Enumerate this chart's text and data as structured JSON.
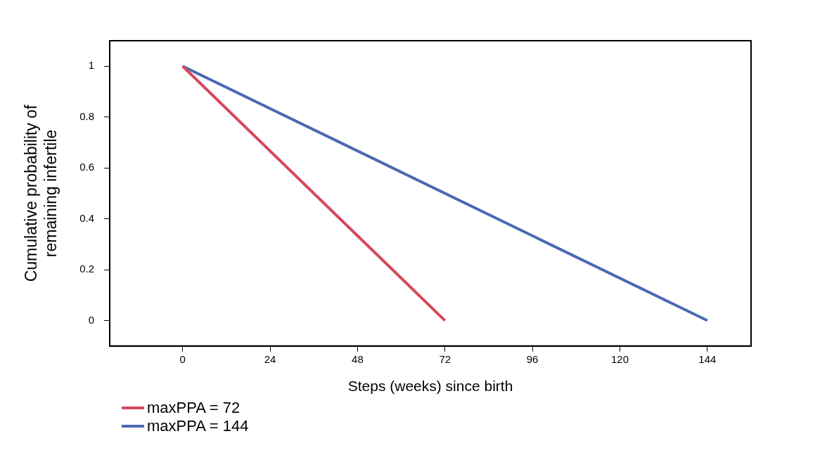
{
  "chart_data": {
    "type": "line",
    "xlabel": "Steps (weeks) since birth",
    "ylabel": "Cumulative probability of\nremaining infertile",
    "xlim": [
      -20,
      156
    ],
    "xticks": [
      0,
      24,
      48,
      72,
      96,
      120,
      144
    ],
    "ylim": [
      -0.1,
      1.1
    ],
    "yticks": [
      0,
      0.2,
      0.4,
      0.6,
      0.8,
      1
    ],
    "grid": false,
    "legend": "bottom left",
    "marker": "none",
    "line_style": "solid",
    "series": [
      {
        "name": "maxPPA = 72",
        "color": "#d5495b",
        "x": [
          0,
          72
        ],
        "values": [
          1,
          0
        ]
      },
      {
        "name": "maxPPA = 144",
        "color": "#4a69b2",
        "x": [
          0,
          144
        ],
        "values": [
          1,
          0
        ]
      }
    ]
  }
}
